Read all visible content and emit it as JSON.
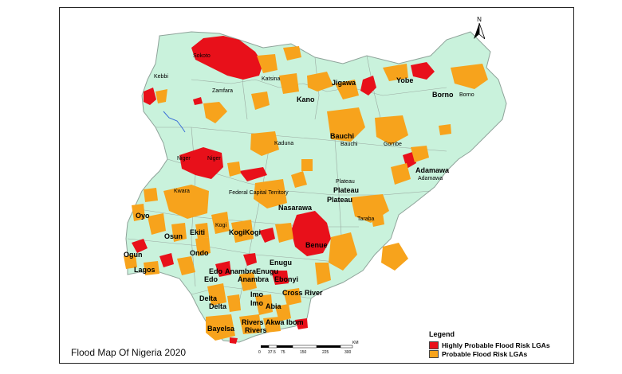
{
  "title": "Flood Map Of Nigeria 2020",
  "legend": {
    "title": "Legend",
    "items": [
      {
        "label": "Highly Probable Flood Risk LGAs",
        "color": "#e8101a"
      },
      {
        "label": "Probable Flood Risk LGAs",
        "color": "#f7a31c"
      }
    ]
  },
  "colors": {
    "land": "#c9f2dc",
    "border": "#9aa9a0",
    "high": "#e8101a",
    "probable": "#f7a31c",
    "river": "#3b6fd8"
  },
  "north_label": "N",
  "scale": {
    "ticks": [
      "0",
      "37.5",
      "75",
      "150",
      "225",
      "300"
    ],
    "unit": "KM"
  },
  "labels": {
    "sokoto": "Sokoto",
    "kebbi": "Kebbi",
    "zamfara": "Zamfara",
    "katsina": "Katsina",
    "kano": "Kano",
    "jigawa": "Jigawa",
    "yobe": "Yobe",
    "borno": "Borno",
    "borno_lga": "Borno",
    "bauchi": "Bauchi",
    "bauchi_lga": "Bauchi",
    "gombe": "Gombe",
    "kaduna": "Kaduna",
    "niger": "Niger",
    "niger2": "Niger",
    "adamawa": "Adamawa",
    "adamawa_lga": "Adamawa",
    "kwara": "Kwara",
    "fct": "Federal Capital Territory",
    "plateau_lga": "Plateau",
    "plateau": "Plateau",
    "plateau2": "Plateau",
    "nasarawa": "Nasarawa",
    "taraba": "Taraba",
    "oyo": "Oyo",
    "kogi_lga": "Kogi",
    "ekiti": "Ekiti",
    "osun": "Osun",
    "kogi": "KogiKogi",
    "benue": "Benue",
    "ondo": "Ondo",
    "ogun": "Ogun",
    "lagos": "Lagos",
    "enugu": "Enugu",
    "edo": "Edo",
    "anambra_enugu": "AnambraEnugu",
    "edo2": "Edo",
    "anambra": "Anambra",
    "ebonyi": "Ebonyi",
    "delta": "Delta",
    "imo": "Imo",
    "delta2": "Delta",
    "imo2": "Imo",
    "abia": "Abia",
    "cross_river": "Cross River",
    "rivers": "Rivers",
    "akwa_ibom": "Akwa Ibom",
    "bayelsa": "Bayelsa",
    "rivers2": "Rivers"
  }
}
